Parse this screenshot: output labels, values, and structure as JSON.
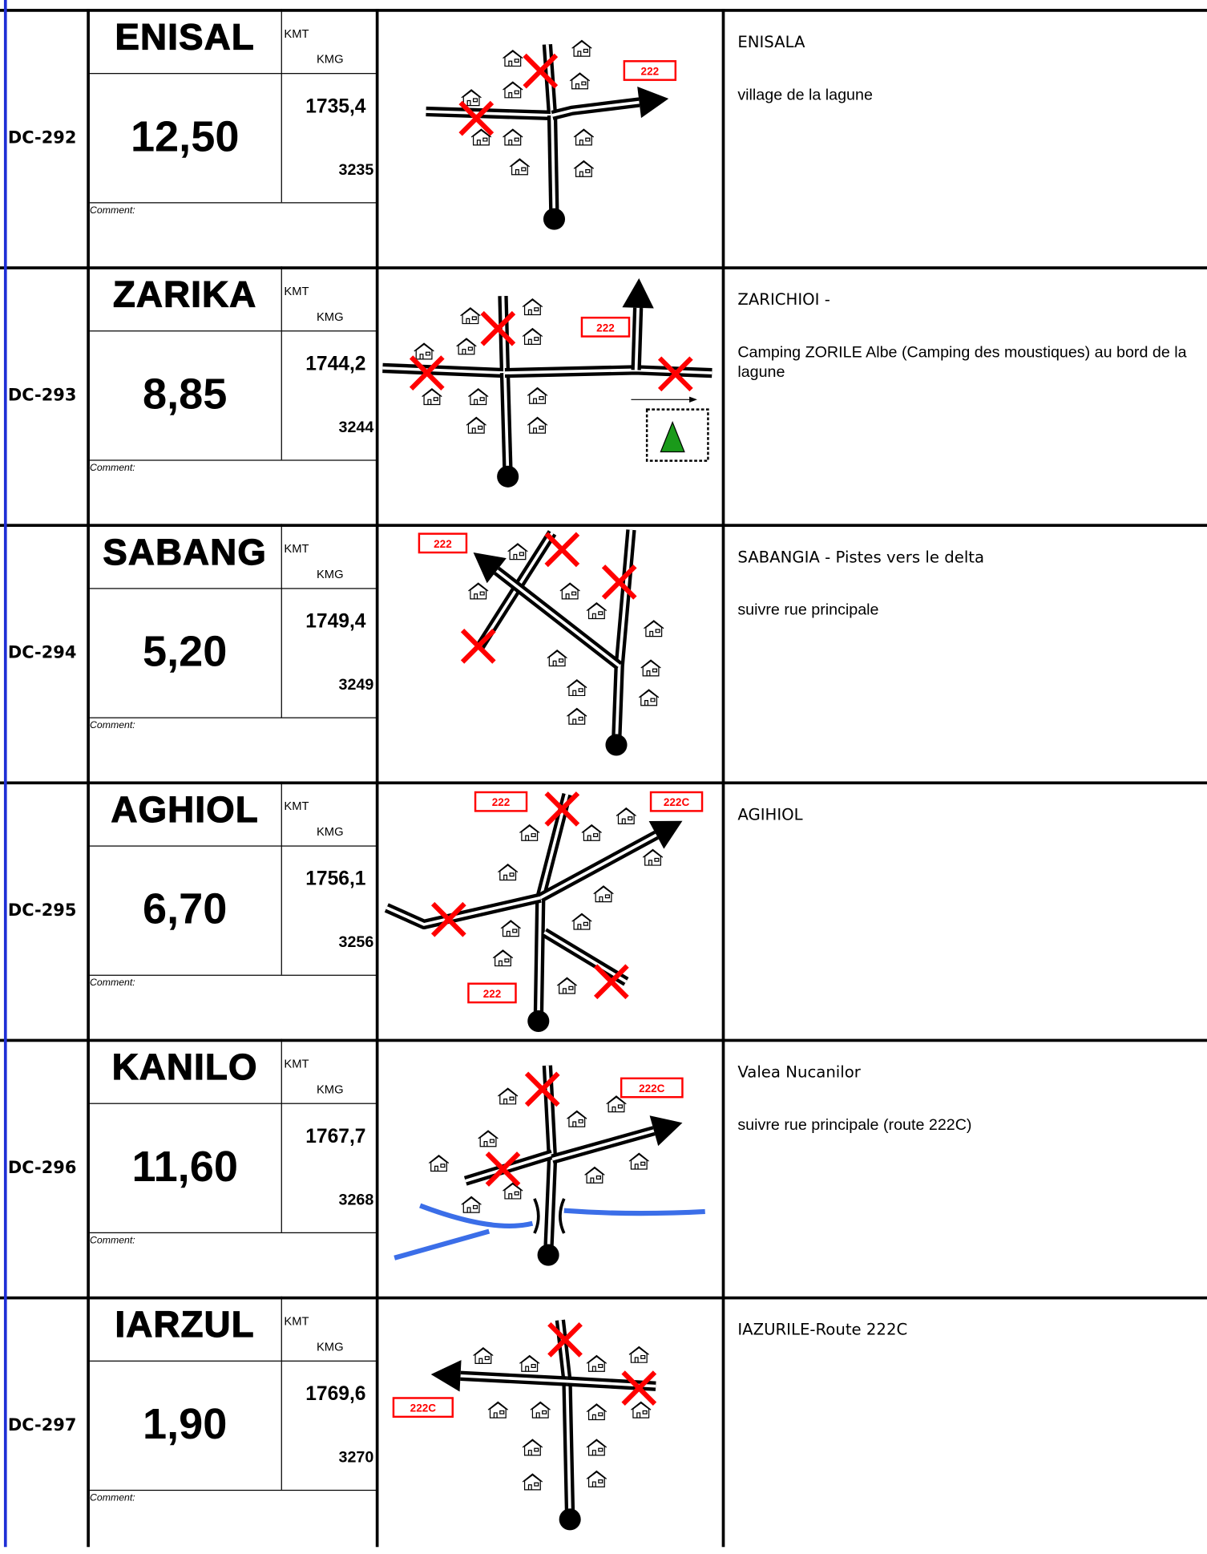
{
  "labels": {
    "kmt": "KMT",
    "kmg": "KMG",
    "comment": "Comment:"
  },
  "rows": [
    {
      "id": "DC-292",
      "name": "ENISAL",
      "partial": "12,50",
      "kmt": "1735,4",
      "kmg": "3235",
      "signs": [
        "222"
      ],
      "description": [
        "ENISALA",
        "village de la lagune"
      ]
    },
    {
      "id": "DC-293",
      "name": "ZARIKA",
      "partial": "8,85",
      "kmt": "1744,2",
      "kmg": "3244",
      "signs": [
        "222"
      ],
      "description": [
        "ZARICHIOI -",
        "Camping ZORILE Albe (Camping des moustiques) au bord de la lagune"
      ]
    },
    {
      "id": "DC-294",
      "name": "SABANG",
      "partial": "5,20",
      "kmt": "1749,4",
      "kmg": "3249",
      "signs": [
        "222"
      ],
      "description": [
        "SABANGIA - Pistes vers le delta",
        "suivre rue principale"
      ]
    },
    {
      "id": "DC-295",
      "name": "AGHIOL",
      "partial": "6,70",
      "kmt": "1756,1",
      "kmg": "3256",
      "signs": [
        "222",
        "222C",
        "222"
      ],
      "description": [
        "AGIHIOL"
      ]
    },
    {
      "id": "DC-296",
      "name": "KANILO",
      "partial": "11,60",
      "kmt": "1767,7",
      "kmg": "3268",
      "signs": [
        "222C"
      ],
      "description": [
        "Valea Nucanilor",
        "suivre rue principale (route 222C)"
      ]
    },
    {
      "id": "DC-297",
      "name": "IARZUL",
      "partial": "1,90",
      "kmt": "1769,6",
      "kmg": "3270",
      "signs": [
        "222C"
      ],
      "description": [
        "IAZURILE-Route 222C"
      ]
    }
  ]
}
